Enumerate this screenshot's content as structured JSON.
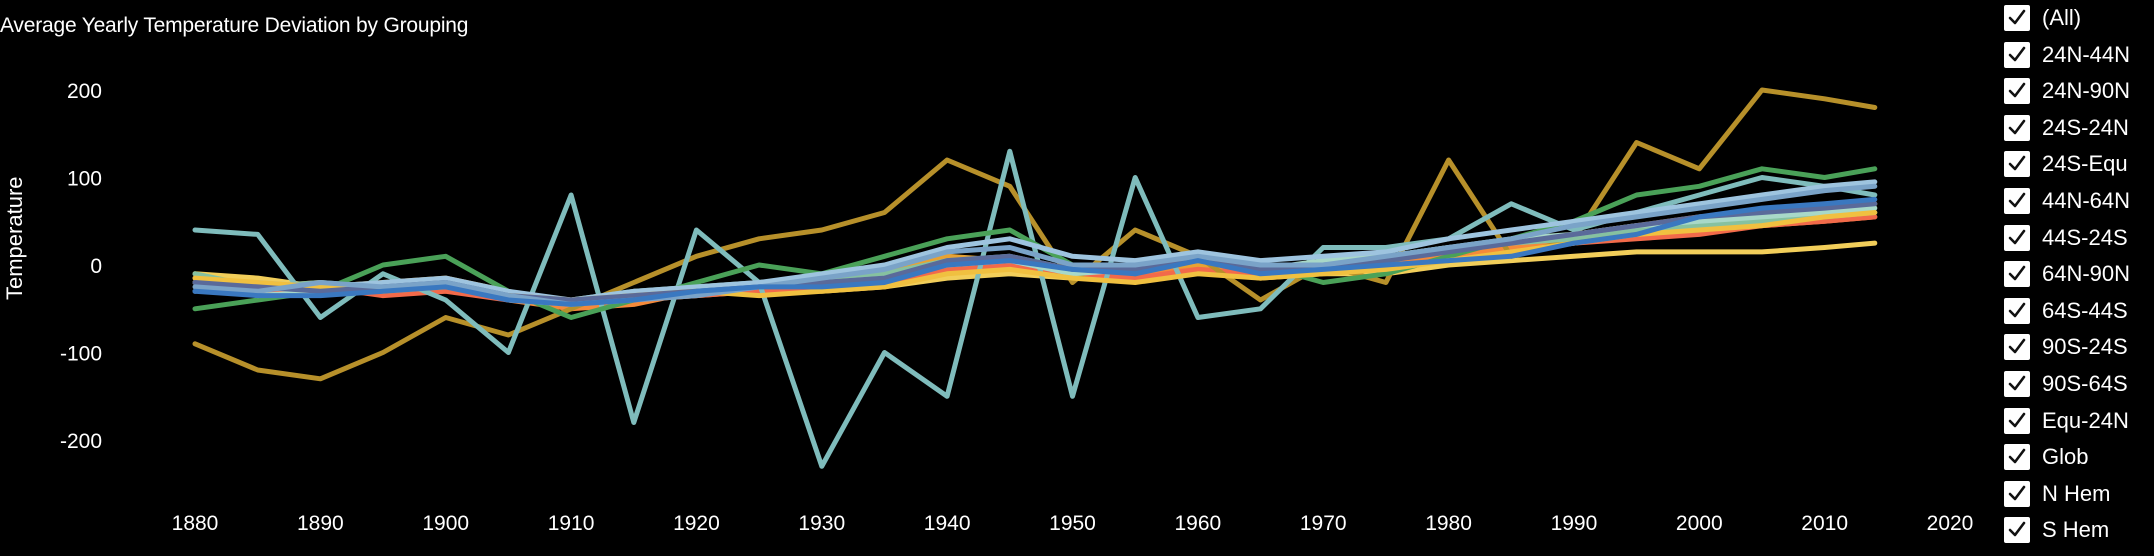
{
  "chart_data": {
    "type": "line",
    "title": "Average Yearly Temperature Deviation by Grouping",
    "xlabel": "",
    "ylabel": "Temperature",
    "xlim": [
      1875,
      2020
    ],
    "ylim": [
      -260,
      230
    ],
    "x_ticks": [
      "1880",
      "1890",
      "1900",
      "1910",
      "1920",
      "1930",
      "1940",
      "1950",
      "1960",
      "1970",
      "1980",
      "1990",
      "2000",
      "2010",
      "2020"
    ],
    "y_ticks": [
      "200",
      "100",
      "0",
      "-100",
      "-200"
    ],
    "x_tick_values": [
      1880,
      1890,
      1900,
      1910,
      1920,
      1930,
      1940,
      1950,
      1960,
      1970,
      1980,
      1990,
      2000,
      2010,
      2020
    ],
    "y_tick_values": [
      200,
      100,
      0,
      -100,
      -200
    ],
    "x": [
      1880,
      1885,
      1890,
      1895,
      1900,
      1905,
      1910,
      1915,
      1920,
      1925,
      1930,
      1935,
      1940,
      1945,
      1950,
      1955,
      1960,
      1965,
      1970,
      1975,
      1980,
      1985,
      1990,
      1995,
      2000,
      2005,
      2010,
      2014
    ],
    "series": [
      {
        "name": "24N-44N",
        "color": "#f2ce5a",
        "values": [
          -10,
          -15,
          -25,
          -30,
          -20,
          -35,
          -40,
          -35,
          -30,
          -25,
          -30,
          -25,
          -15,
          -10,
          -15,
          -10,
          -5,
          -15,
          -10,
          -10,
          0,
          5,
          10,
          15,
          15,
          15,
          20,
          25
        ]
      },
      {
        "name": "24N-90N",
        "color": "#e8a233",
        "values": [
          -20,
          -30,
          -25,
          -20,
          -15,
          -30,
          -45,
          -40,
          -35,
          -30,
          -20,
          -10,
          10,
          5,
          -10,
          -5,
          0,
          -10,
          0,
          5,
          15,
          25,
          35,
          45,
          55,
          60,
          65,
          70
        ]
      },
      {
        "name": "24S-24N",
        "color": "#f58a3a",
        "values": [
          -15,
          -25,
          -20,
          -30,
          -20,
          -40,
          -50,
          -45,
          -30,
          -25,
          -20,
          -15,
          0,
          5,
          -15,
          -10,
          -5,
          -10,
          -5,
          0,
          10,
          20,
          25,
          35,
          40,
          45,
          50,
          55
        ]
      },
      {
        "name": "24S-Equ",
        "color": "#f26a4a",
        "values": [
          -20,
          -30,
          -25,
          -35,
          -30,
          -40,
          -45,
          -40,
          -35,
          -30,
          -25,
          -20,
          -5,
          0,
          -10,
          -15,
          -5,
          -10,
          -5,
          0,
          5,
          15,
          25,
          30,
          35,
          45,
          50,
          55
        ]
      },
      {
        "name": "44N-64N",
        "color": "#b7902a",
        "values": [
          -90,
          -120,
          -130,
          -100,
          -60,
          -80,
          -50,
          -20,
          10,
          30,
          40,
          60,
          120,
          90,
          -20,
          40,
          10,
          -40,
          0,
          -20,
          120,
          10,
          30,
          140,
          110,
          200,
          190,
          180
        ]
      },
      {
        "name": "44S-24S",
        "color": "#86c1a0",
        "values": [
          -10,
          -25,
          -20,
          -25,
          -20,
          -35,
          -40,
          -30,
          -25,
          -20,
          -15,
          -10,
          5,
          10,
          -5,
          0,
          5,
          -5,
          0,
          10,
          20,
          25,
          30,
          40,
          45,
          50,
          55,
          60
        ]
      },
      {
        "name": "64N-90N",
        "color": "#7fbcbc",
        "values": [
          40,
          35,
          -60,
          -10,
          -40,
          -100,
          80,
          -180,
          40,
          -20,
          -230,
          -100,
          -150,
          130,
          -150,
          100,
          -60,
          -50,
          20,
          20,
          30,
          70,
          40,
          60,
          80,
          100,
          90,
          80
        ]
      },
      {
        "name": "64S-44S",
        "color": "#4aa158",
        "values": [
          -50,
          -40,
          -30,
          0,
          10,
          -30,
          -60,
          -40,
          -20,
          0,
          -10,
          10,
          30,
          40,
          0,
          -10,
          10,
          0,
          -20,
          -10,
          10,
          30,
          50,
          80,
          90,
          110,
          100,
          110
        ]
      },
      {
        "name": "90S-24S",
        "color": "#a8d8c8",
        "values": [
          -20,
          -35,
          -30,
          -25,
          -20,
          -40,
          -45,
          -35,
          -30,
          -25,
          -20,
          -15,
          0,
          5,
          -10,
          -5,
          5,
          -5,
          5,
          10,
          20,
          30,
          35,
          45,
          50,
          55,
          60,
          65
        ]
      },
      {
        "name": "90S-64S",
        "color": "#9ec4df",
        "values": [
          -30,
          -20,
          -25,
          -20,
          -15,
          -30,
          -40,
          -30,
          -25,
          -20,
          -10,
          0,
          20,
          30,
          10,
          5,
          15,
          5,
          10,
          15,
          30,
          40,
          50,
          60,
          70,
          80,
          90,
          95
        ]
      },
      {
        "name": "Equ-24N",
        "color": "#f0c040",
        "values": [
          -15,
          -20,
          -25,
          -30,
          -25,
          -35,
          -40,
          -35,
          -30,
          -35,
          -30,
          -25,
          -10,
          -5,
          -15,
          -20,
          -10,
          -15,
          -10,
          -5,
          5,
          15,
          25,
          35,
          40,
          45,
          55,
          60
        ]
      },
      {
        "name": "Glob",
        "color": "#5a6a9a",
        "values": [
          -20,
          -25,
          -30,
          -25,
          -20,
          -35,
          -40,
          -35,
          -30,
          -25,
          -20,
          -15,
          5,
          10,
          -5,
          -5,
          5,
          -5,
          0,
          5,
          15,
          25,
          35,
          45,
          55,
          60,
          65,
          70
        ]
      },
      {
        "name": "N Hem",
        "color": "#7aa3c8",
        "values": [
          -25,
          -30,
          -20,
          -25,
          -20,
          -35,
          -45,
          -40,
          -35,
          -25,
          -15,
          -5,
          15,
          20,
          0,
          0,
          10,
          0,
          0,
          10,
          20,
          30,
          45,
          55,
          65,
          75,
          85,
          90
        ]
      },
      {
        "name": "S Hem",
        "color": "#3a78c0",
        "values": [
          -30,
          -35,
          -35,
          -30,
          -25,
          -40,
          -45,
          -40,
          -30,
          -25,
          -25,
          -20,
          0,
          5,
          -5,
          -10,
          5,
          -10,
          -5,
          0,
          5,
          10,
          25,
          35,
          55,
          65,
          70,
          75
        ]
      }
    ]
  },
  "legend": {
    "items": [
      "(All)",
      "24N-44N",
      "24N-90N",
      "24S-24N",
      "24S-Equ",
      "44N-64N",
      "44S-24S",
      "64N-90N",
      "64S-44S",
      "90S-24S",
      "90S-64S",
      "Equ-24N",
      "Glob",
      "N Hem",
      "S Hem"
    ]
  }
}
